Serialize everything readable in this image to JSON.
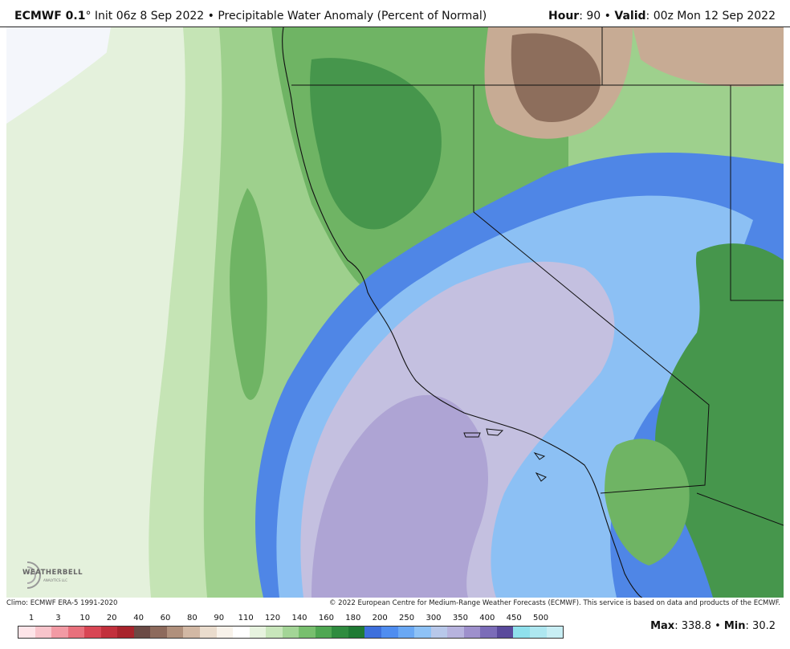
{
  "header": {
    "model": "ECMWF 0.1",
    "degree": "°",
    "init": "Init 06z 8 Sep 2022",
    "separator": "•",
    "product": "Precipitable Water Anomaly (Percent of Normal)",
    "hour_label": "Hour",
    "hour_value": "90",
    "valid_label": "Valid",
    "valid_value": "00z Mon 12 Sep 2022"
  },
  "footer": {
    "climo": "Climo: ECMWF ERA-5 1991-2020",
    "copyright": "© 2022 European Centre for Medium-Range Weather Forecasts (ECMWF). This service is based on data and products of the ECMWF."
  },
  "logo": {
    "text": "WEATHERBELL",
    "sub": "ANALYTICS LLC"
  },
  "legend": {
    "labels": [
      "1",
      "3",
      "10",
      "20",
      "40",
      "60",
      "80",
      "90",
      "110",
      "120",
      "140",
      "160",
      "180",
      "200",
      "250",
      "300",
      "350",
      "400",
      "450",
      "500"
    ],
    "colors": [
      "#fde4e8",
      "#f8c4cb",
      "#f29aa4",
      "#e8707c",
      "#d84654",
      "#c2303c",
      "#a8242c",
      "#6b4a45",
      "#8d6a5c",
      "#b0907c",
      "#d2b8a4",
      "#eadccd",
      "#f8f2ea",
      "#ffffff",
      "#e7f3df",
      "#c8e6bb",
      "#a3d596",
      "#78bf6e",
      "#4fa752",
      "#2f8c3f",
      "#1f7a34",
      "#3d6fdc",
      "#4f8df0",
      "#6aa8f4",
      "#8ec2f6",
      "#b8c8ea",
      "#b7b3de",
      "#9e90cc",
      "#7b6cb8",
      "#5a4a9c",
      "#8fe0ec",
      "#aee7f0",
      "#c8eef4"
    ]
  },
  "maxmin": {
    "max_label": "Max",
    "max_value": "338.8",
    "sep": "•",
    "min_label": "Min",
    "min_value": "30.2"
  },
  "map": {
    "region": "California / Southwest US",
    "colors": {
      "ocean_low": "#f4f6fb",
      "pale_green": "#e4f1dc",
      "light_green": "#c5e4b5",
      "mid_green": "#9ed08d",
      "green": "#6fb464",
      "dark_green": "#46964c",
      "blue": "#4f86e6",
      "light_blue": "#8cc0f4",
      "lavender": "#c4c0e0",
      "purple": "#aea4d4",
      "brown": "#8d6e5c",
      "tan": "#c7ab94",
      "border": "#111111"
    }
  }
}
